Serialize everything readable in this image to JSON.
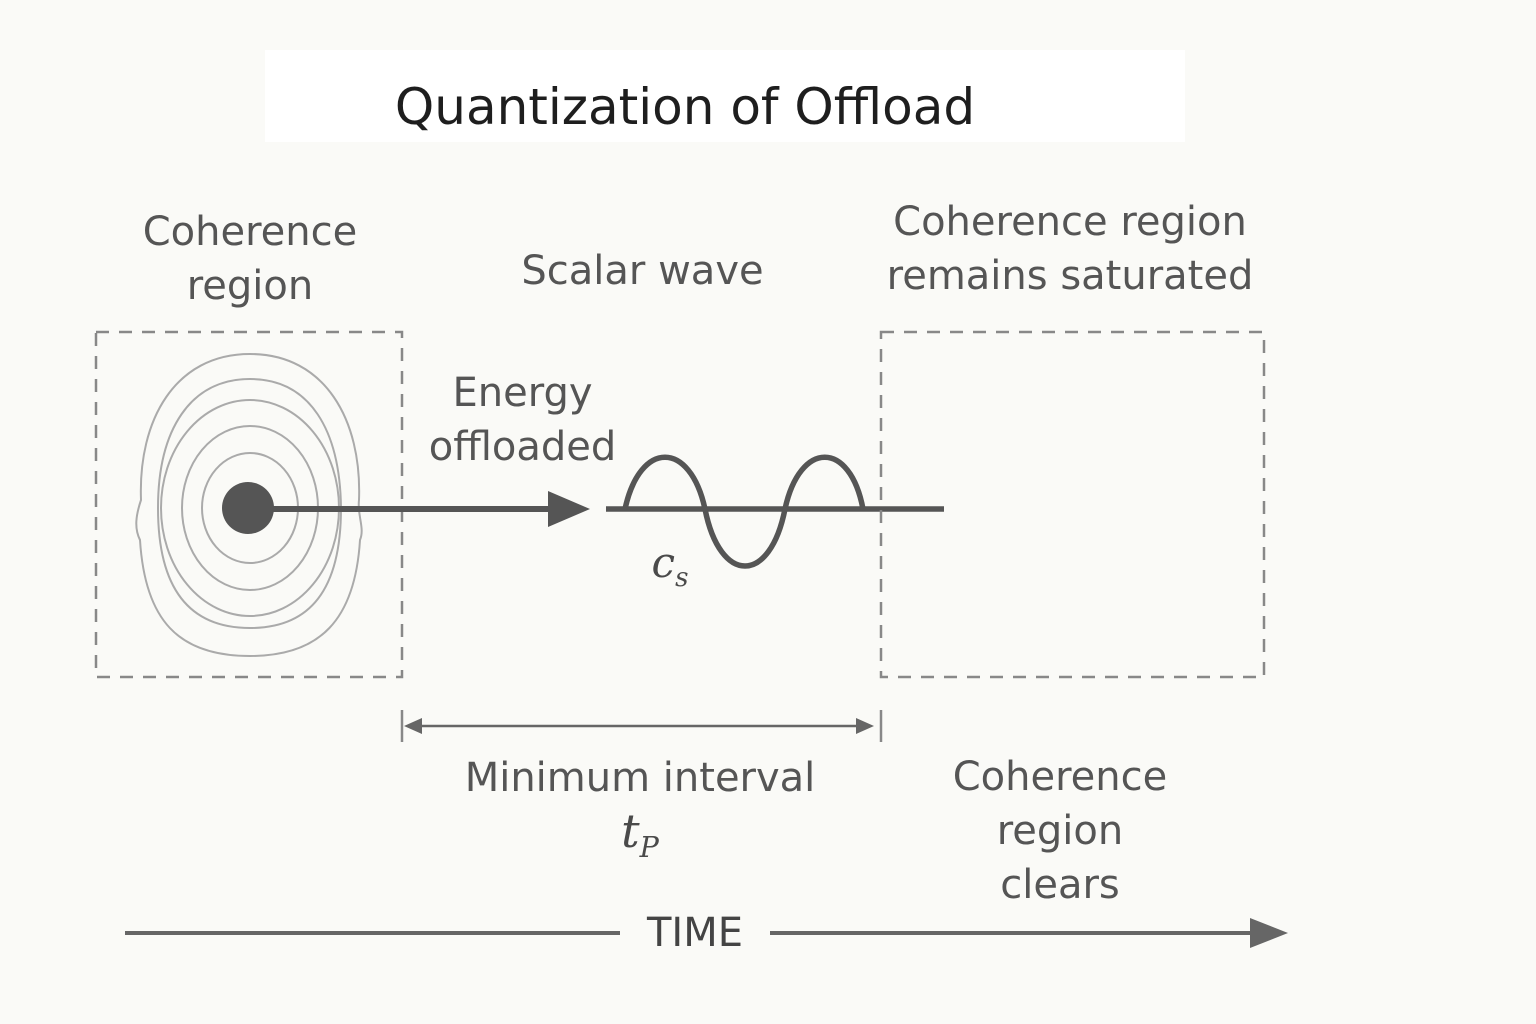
{
  "title": "Quantization of Offload",
  "labels": {
    "left_region": [
      "Coherence",
      "region"
    ],
    "scalar_wave": "Scalar wave",
    "right_region": [
      "Coherence region",
      "remains saturated"
    ],
    "energy": [
      "Energy",
      "offloaded"
    ],
    "wave_speed_symbol": "c",
    "wave_speed_subscript": "s",
    "interval": "Minimum interval",
    "interval_symbol": "t",
    "interval_subscript": "P",
    "clears": [
      "Coherence",
      "region",
      "clears"
    ],
    "time_axis": "TIME"
  },
  "colors": {
    "background": "#fafaf7",
    "stroke": "#555555",
    "dash": "#888888",
    "rings": "#aaaaaa",
    "title": "#1e1e1e"
  }
}
